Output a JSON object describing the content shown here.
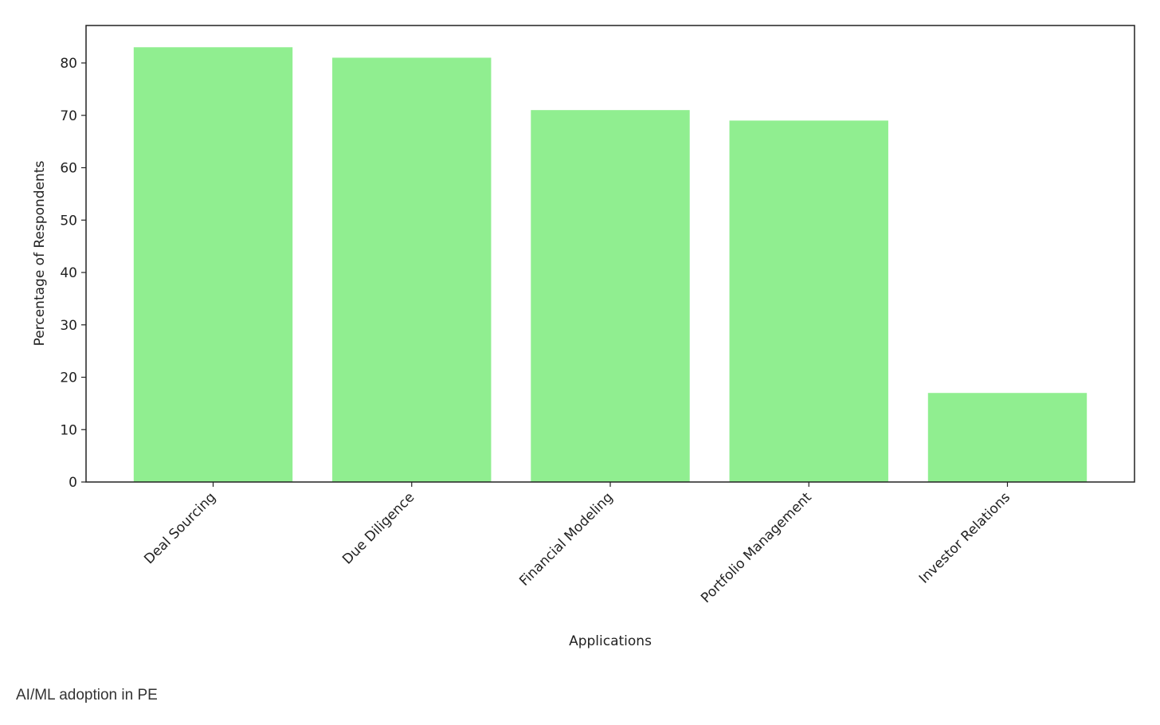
{
  "chart_data": {
    "type": "bar",
    "x_label": "Applications",
    "y_label": "Percentage of Respondents",
    "categories": [
      "Deal Sourcing",
      "Due Diligence",
      "Financial Modeling",
      "Portfolio Management",
      "Investor Relations"
    ],
    "values": [
      83,
      81,
      71,
      69,
      17
    ],
    "color": "#90ee90",
    "ylim": [
      0,
      87.15
    ],
    "yticks": [
      0,
      10,
      20,
      30,
      40,
      50,
      60,
      70,
      80
    ],
    "grid": false
  },
  "caption": "AI/ML adoption in PE"
}
